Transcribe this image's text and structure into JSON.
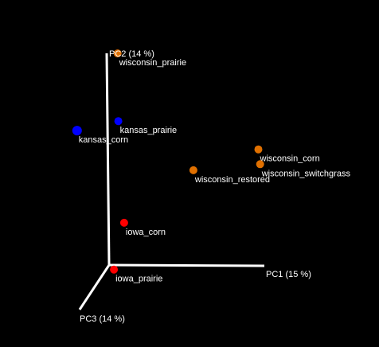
{
  "chart_data": {
    "type": "scatter",
    "projection": "3d-pcoa",
    "background": "#000000",
    "axis_color": "#ffffff",
    "label_color": "#ffffff",
    "axes": {
      "x": {
        "label": "PC1 (15 %)"
      },
      "y": {
        "label": "PC2 (14 %)"
      },
      "z": {
        "label": "PC3 (14 %)"
      }
    },
    "points": [
      {
        "label": "wisconsin_prairie",
        "x": 0.07,
        "y": 1.0,
        "z": 0.0,
        "color": "#e07000"
      },
      {
        "label": "kansas_prairie",
        "x": 0.07,
        "y": 0.68,
        "z": 0.0,
        "color": "#0000ff"
      },
      {
        "label": "kansas_corn",
        "x": -0.1,
        "y": 0.74,
        "z": 0.5,
        "color": "#0000ff"
      },
      {
        "label": "wisconsin_corn",
        "x": 0.97,
        "y": 0.55,
        "z": 0.0,
        "color": "#e07000"
      },
      {
        "label": "wisconsin_switchgrass",
        "x": 0.98,
        "y": 0.48,
        "z": 0.0,
        "color": "#e07000"
      },
      {
        "label": "wisconsin_restored",
        "x": 0.55,
        "y": 0.45,
        "z": 0.0,
        "color": "#e07000"
      },
      {
        "label": "iowa_corn",
        "x": 0.1,
        "y": 0.2,
        "z": 0.0,
        "color": "#ff0000"
      },
      {
        "label": "iowa_prairie",
        "x": 0.05,
        "y": 0.0,
        "z": 0.1,
        "color": "#ff0000"
      }
    ]
  }
}
